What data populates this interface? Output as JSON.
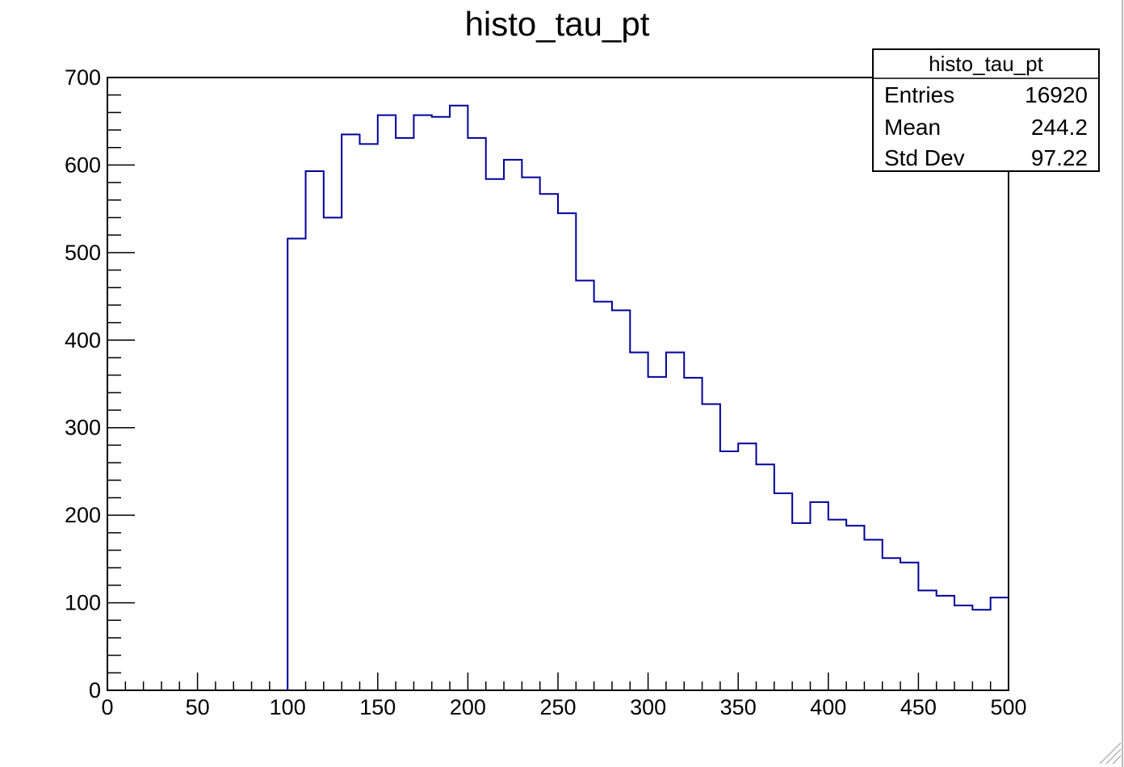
{
  "chart_data": {
    "type": "histogram",
    "title": "histo_tau_pt",
    "xlim": [
      0,
      500
    ],
    "ylim": [
      0,
      700
    ],
    "x_ticks": [
      "0",
      "50",
      "100",
      "150",
      "200",
      "250",
      "300",
      "350",
      "400",
      "450",
      "500"
    ],
    "y_ticks": [
      "0",
      "100",
      "200",
      "300",
      "400",
      "500",
      "600",
      "700"
    ],
    "bin_width": 10,
    "bin_start": 100,
    "values": [
      516,
      593,
      540,
      635,
      624,
      657,
      631,
      657,
      655,
      668,
      631,
      584,
      606,
      586,
      567,
      545,
      468,
      444,
      434,
      386,
      358,
      386,
      357,
      327,
      273,
      282,
      258,
      225,
      191,
      215,
      195,
      188,
      172,
      151,
      146,
      114,
      108,
      97,
      92,
      106
    ],
    "line_color": "#000099",
    "grid": false
  },
  "stats_box": {
    "title": "histo_tau_pt",
    "rows": [
      {
        "label": "Entries",
        "value": "16920"
      },
      {
        "label": "Mean",
        "value": "244.2"
      },
      {
        "label": "Std Dev",
        "value": "97.22"
      }
    ]
  }
}
